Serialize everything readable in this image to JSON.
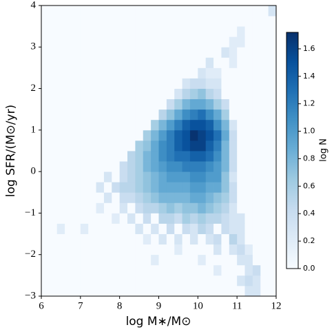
{
  "chart_data": {
    "type": "heatmap",
    "xlabel": "log M∗/M⊙",
    "ylabel": "log SFR/(M⊙/yr)",
    "colorbar_label": "log N",
    "colormap": "Blues",
    "xlim": [
      6,
      12
    ],
    "ylim": [
      -3,
      4
    ],
    "clim": [
      0,
      1.72
    ],
    "xticks": [
      6,
      7,
      8,
      9,
      10,
      11,
      12
    ],
    "yticks": [
      {
        "value": -3,
        "label": "−3"
      },
      {
        "value": -2,
        "label": "−2"
      },
      {
        "value": -1,
        "label": "−1"
      },
      0,
      1,
      2,
      3,
      4
    ],
    "cticks": [
      {
        "value": 0,
        "label": "0.0"
      },
      {
        "value": 0.2,
        "label": "0.2"
      },
      {
        "value": 0.4,
        "label": "0.4"
      },
      {
        "value": 0.6,
        "label": "0.6"
      },
      {
        "value": 0.8,
        "label": "0.8"
      },
      {
        "value": 1,
        "label": "1.0"
      },
      {
        "value": 1.2,
        "label": "1.2"
      },
      {
        "value": 1.4,
        "label": "1.4"
      },
      {
        "value": 1.6,
        "label": "1.6"
      }
    ],
    "xbins": [
      6,
      6.2,
      6.4,
      6.6,
      6.8,
      7,
      7.2,
      7.4,
      7.6,
      7.8,
      8,
      8.2,
      8.4,
      8.6,
      8.8,
      9,
      9.2,
      9.4,
      9.6,
      9.8,
      10,
      10.2,
      10.4,
      10.6,
      10.8,
      11,
      11.2,
      11.4,
      11.6,
      11.8,
      12
    ],
    "ybins": [
      -3,
      -2.75,
      -2.5,
      -2.25,
      -2,
      -1.75,
      -1.5,
      -1.25,
      -1,
      -0.75,
      -0.5,
      -0.25,
      0,
      0.25,
      0.5,
      0.75,
      1,
      1.25,
      1.5,
      1.75,
      2,
      2.25,
      2.5,
      2.75,
      3,
      3.25,
      3.5,
      3.75,
      4
    ],
    "z": [
      [
        0,
        0,
        0,
        0,
        0,
        0,
        0,
        0,
        0,
        0,
        0,
        0,
        0,
        0,
        0,
        0,
        0,
        0,
        0,
        0,
        0,
        0,
        0,
        0,
        0,
        0,
        0.3,
        0.3,
        0,
        0
      ],
      [
        0,
        0,
        0,
        0,
        0,
        0,
        0,
        0,
        0,
        0,
        0,
        0,
        0,
        0,
        0,
        0,
        0,
        0,
        0,
        0,
        0,
        0,
        0,
        0,
        0,
        0.3,
        0.4,
        0.3,
        0,
        0
      ],
      [
        0,
        0,
        0,
        0,
        0,
        0,
        0,
        0,
        0,
        0,
        0,
        0,
        0,
        0,
        0,
        0,
        0,
        0,
        0,
        0,
        0,
        0,
        0.2,
        0,
        0,
        0,
        0.3,
        0.4,
        0,
        0
      ],
      [
        0,
        0,
        0,
        0,
        0,
        0,
        0,
        0,
        0,
        0,
        0,
        0,
        0,
        0,
        0.2,
        0,
        0,
        0,
        0,
        0,
        0.2,
        0,
        0,
        0,
        0,
        0.3,
        0.3,
        0,
        0,
        0
      ],
      [
        0,
        0,
        0,
        0,
        0,
        0,
        0,
        0,
        0,
        0,
        0,
        0,
        0,
        0,
        0,
        0,
        0,
        0.2,
        0,
        0,
        0,
        0,
        0.3,
        0,
        0.3,
        0.4,
        0.2,
        0,
        0,
        0
      ],
      [
        0,
        0,
        0,
        0,
        0,
        0,
        0,
        0,
        0,
        0,
        0,
        0,
        0,
        0.2,
        0,
        0.3,
        0,
        0.3,
        0,
        0.3,
        0,
        0.3,
        0.4,
        0,
        0.5,
        0.3,
        0,
        0,
        0,
        0
      ],
      [
        0,
        0,
        0.2,
        0,
        0,
        0.2,
        0,
        0,
        0,
        0,
        0,
        0,
        0.3,
        0,
        0.3,
        0,
        0.4,
        0,
        0.4,
        0.3,
        0.5,
        0.4,
        0,
        0.4,
        0.3,
        0.3,
        0,
        0,
        0,
        0
      ],
      [
        0,
        0,
        0,
        0,
        0,
        0,
        0,
        0,
        0,
        0.2,
        0,
        0.3,
        0,
        0.4,
        0,
        0.5,
        0.5,
        0.4,
        0.6,
        0.5,
        0.6,
        0.5,
        0.5,
        0.4,
        0.3,
        0.3,
        0,
        0,
        0,
        0
      ],
      [
        0,
        0,
        0,
        0,
        0,
        0,
        0,
        0.2,
        0,
        0,
        0.3,
        0,
        0.4,
        0.5,
        0.5,
        0.6,
        0.7,
        0.6,
        0.7,
        0.7,
        0.8,
        0.7,
        0.6,
        0.5,
        0.3,
        0,
        0,
        0,
        0,
        0
      ],
      [
        0,
        0,
        0,
        0,
        0,
        0,
        0,
        0,
        0.3,
        0,
        0.4,
        0.4,
        0.5,
        0.6,
        0.7,
        0.8,
        0.8,
        0.8,
        0.8,
        0.9,
        0.9,
        0.8,
        0.7,
        0.6,
        0.4,
        0,
        0,
        0,
        0,
        0
      ],
      [
        0,
        0,
        0,
        0,
        0,
        0,
        0,
        0.3,
        0,
        0.4,
        0.5,
        0.5,
        0.6,
        0.7,
        0.8,
        0.9,
        0.9,
        0.9,
        0.9,
        1.0,
        1.0,
        0.9,
        0.9,
        0.7,
        0.4,
        0,
        0,
        0,
        0,
        0
      ],
      [
        0,
        0,
        0,
        0,
        0,
        0,
        0,
        0,
        0.3,
        0,
        0.4,
        0.5,
        0.6,
        0.7,
        0.8,
        0.9,
        1.0,
        1.0,
        1.0,
        1.1,
        1.1,
        1.0,
        1.0,
        0.7,
        0.3,
        0,
        0,
        0,
        0,
        0
      ],
      [
        0,
        0,
        0,
        0,
        0,
        0,
        0,
        0,
        0,
        0,
        0.4,
        0.5,
        0.6,
        0.8,
        0.9,
        1.0,
        1.1,
        1.1,
        1.2,
        1.2,
        1.2,
        1.1,
        1.0,
        0.8,
        0.4,
        0,
        0,
        0,
        0,
        0
      ],
      [
        0,
        0,
        0,
        0,
        0,
        0,
        0,
        0,
        0,
        0,
        0,
        0.5,
        0.6,
        0.8,
        0.9,
        1.1,
        1.2,
        1.3,
        1.3,
        1.4,
        1.4,
        1.3,
        1.1,
        0.8,
        0.4,
        0,
        0,
        0,
        0,
        0
      ],
      [
        0,
        0,
        0,
        0,
        0,
        0,
        0,
        0,
        0,
        0,
        0,
        0,
        0.6,
        0.7,
        0.9,
        1.1,
        1.2,
        1.4,
        1.5,
        1.6,
        1.6,
        1.4,
        1.2,
        0.8,
        0.4,
        0,
        0,
        0,
        0,
        0
      ],
      [
        0,
        0,
        0,
        0,
        0,
        0,
        0,
        0,
        0,
        0,
        0,
        0,
        0,
        0.6,
        0.8,
        1.0,
        1.2,
        1.4,
        1.5,
        1.7,
        1.6,
        1.5,
        1.3,
        0.9,
        0.4,
        0,
        0,
        0,
        0,
        0
      ],
      [
        0,
        0,
        0,
        0,
        0,
        0,
        0,
        0,
        0,
        0,
        0,
        0,
        0,
        0,
        0.6,
        0.8,
        1.0,
        1.2,
        1.4,
        1.5,
        1.5,
        1.4,
        1.1,
        0.8,
        0.3,
        0,
        0,
        0,
        0,
        0
      ],
      [
        0,
        0,
        0,
        0,
        0,
        0,
        0,
        0,
        0,
        0,
        0,
        0,
        0,
        0,
        0,
        0.5,
        0.7,
        0.9,
        1.1,
        1.2,
        1.3,
        1.1,
        0.9,
        0.6,
        0,
        0,
        0,
        0,
        0,
        0
      ],
      [
        0,
        0,
        0,
        0,
        0,
        0,
        0,
        0,
        0,
        0,
        0,
        0,
        0,
        0,
        0,
        0,
        0.4,
        0.6,
        0.8,
        0.9,
        0.9,
        0.8,
        0.6,
        0.4,
        0,
        0,
        0,
        0,
        0,
        0
      ],
      [
        0,
        0,
        0,
        0,
        0,
        0,
        0,
        0,
        0,
        0,
        0,
        0,
        0,
        0,
        0,
        0,
        0,
        0.3,
        0.5,
        0.6,
        0.7,
        0.5,
        0.4,
        0,
        0,
        0,
        0,
        0,
        0,
        0
      ],
      [
        0,
        0,
        0,
        0,
        0,
        0,
        0,
        0,
        0,
        0,
        0,
        0,
        0,
        0,
        0,
        0,
        0,
        0,
        0.3,
        0.4,
        0.4,
        0.3,
        0.3,
        0,
        0,
        0,
        0,
        0,
        0,
        0
      ],
      [
        0,
        0,
        0,
        0,
        0,
        0,
        0,
        0,
        0,
        0,
        0,
        0,
        0,
        0,
        0,
        0,
        0,
        0,
        0,
        0,
        0.3,
        0.2,
        0.2,
        0,
        0,
        0,
        0,
        0,
        0,
        0
      ],
      [
        0,
        0,
        0,
        0,
        0,
        0,
        0,
        0,
        0,
        0,
        0,
        0,
        0,
        0,
        0,
        0,
        0,
        0,
        0,
        0,
        0,
        0.3,
        0,
        0,
        0.2,
        0,
        0,
        0,
        0,
        0
      ],
      [
        0,
        0,
        0,
        0,
        0,
        0,
        0,
        0,
        0,
        0,
        0,
        0,
        0,
        0,
        0,
        0,
        0,
        0,
        0,
        0,
        0,
        0,
        0,
        0.3,
        0.2,
        0,
        0,
        0,
        0,
        0
      ],
      [
        0,
        0,
        0,
        0,
        0,
        0,
        0,
        0,
        0,
        0,
        0,
        0,
        0,
        0,
        0,
        0,
        0,
        0,
        0,
        0,
        0,
        0,
        0,
        0,
        0.2,
        0.2,
        0,
        0,
        0,
        0
      ],
      [
        0,
        0,
        0,
        0,
        0,
        0,
        0,
        0,
        0,
        0,
        0,
        0,
        0,
        0,
        0,
        0,
        0,
        0,
        0,
        0,
        0,
        0,
        0,
        0,
        0,
        0.2,
        0,
        0,
        0,
        0
      ],
      [
        0,
        0,
        0,
        0,
        0,
        0,
        0,
        0,
        0,
        0,
        0,
        0,
        0,
        0,
        0,
        0,
        0,
        0,
        0,
        0,
        0,
        0,
        0,
        0,
        0,
        0,
        0,
        0,
        0,
        0
      ],
      [
        0,
        0,
        0,
        0,
        0,
        0,
        0,
        0,
        0,
        0,
        0,
        0,
        0,
        0,
        0,
        0,
        0,
        0,
        0,
        0,
        0,
        0,
        0,
        0,
        0,
        0,
        0,
        0,
        0,
        0.3
      ]
    ]
  }
}
